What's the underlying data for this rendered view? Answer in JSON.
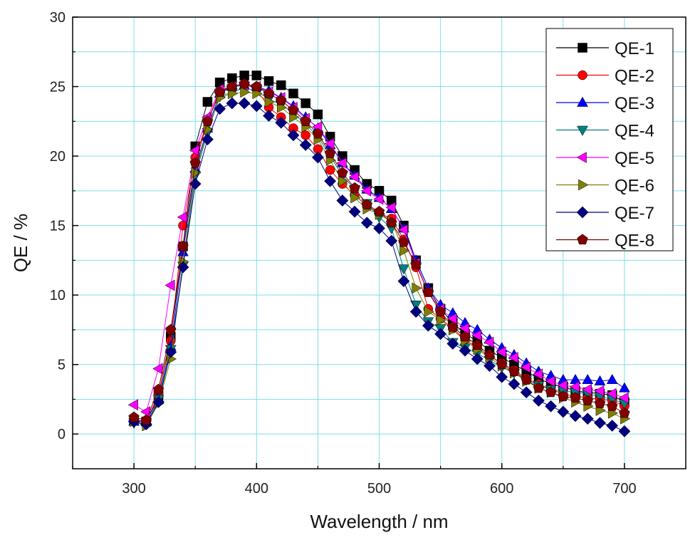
{
  "chart_data": {
    "type": "line",
    "xlabel": "Wavelength / nm",
    "ylabel": "QE / %",
    "xlim": [
      250,
      750
    ],
    "ylim": [
      -2.5,
      30
    ],
    "xticks": [
      300,
      400,
      500,
      600,
      700
    ],
    "yticks": [
      0,
      5,
      10,
      15,
      20,
      25,
      30
    ],
    "grid": true,
    "legend_position": "top-right",
    "x": [
      300,
      310,
      320,
      330,
      340,
      350,
      360,
      370,
      380,
      390,
      400,
      410,
      420,
      430,
      440,
      450,
      460,
      470,
      480,
      490,
      500,
      510,
      520,
      530,
      540,
      550,
      560,
      570,
      580,
      590,
      600,
      610,
      620,
      630,
      640,
      650,
      660,
      670,
      680,
      690,
      700
    ],
    "series": [
      {
        "name": "QE-1",
        "color": "#000000",
        "marker": "square",
        "values": [
          1.0,
          0.9,
          2.8,
          7.0,
          13.5,
          20.7,
          23.9,
          25.3,
          25.6,
          25.8,
          25.8,
          25.4,
          25.1,
          24.5,
          23.8,
          23.0,
          21.4,
          20.0,
          19.0,
          18.0,
          17.5,
          16.8,
          15.0,
          12.5,
          10.5,
          9.0,
          8.0,
          7.2,
          6.7,
          6.0,
          5.5,
          5.0,
          4.5,
          4.0,
          3.6,
          3.4,
          3.1,
          3.0,
          2.9,
          2.8,
          2.3
        ]
      },
      {
        "name": "QE-2",
        "color": "#ff0000",
        "marker": "circle",
        "values": [
          1.1,
          0.8,
          2.9,
          6.7,
          15.0,
          19.9,
          22.5,
          24.7,
          25.0,
          25.2,
          24.8,
          23.5,
          22.8,
          22.0,
          21.5,
          20.5,
          19.0,
          18.0,
          17.2,
          16.4,
          15.9,
          15.5,
          14.0,
          12.0,
          9.0,
          8.3,
          7.6,
          6.8,
          6.2,
          5.6,
          5.1,
          4.6,
          4.0,
          3.6,
          3.2,
          2.9,
          2.7,
          2.6,
          2.5,
          2.4,
          2.0
        ]
      },
      {
        "name": "QE-3",
        "color": "#0000ff",
        "marker": "triangle-up",
        "values": [
          0.9,
          0.9,
          2.6,
          6.3,
          13.1,
          19.1,
          22.0,
          24.5,
          25.0,
          25.1,
          25.0,
          24.7,
          24.2,
          23.6,
          22.8,
          22.0,
          20.8,
          19.5,
          18.6,
          17.6,
          17.0,
          16.2,
          14.8,
          12.5,
          10.5,
          9.3,
          8.7,
          8.0,
          7.5,
          6.8,
          6.2,
          5.7,
          5.1,
          4.5,
          4.2,
          3.9,
          3.9,
          3.9,
          3.8,
          3.9,
          3.3
        ]
      },
      {
        "name": "QE-4",
        "color": "#008080",
        "marker": "triangle-down",
        "values": [
          0.8,
          0.7,
          2.5,
          6.1,
          12.1,
          18.6,
          21.7,
          24.3,
          24.6,
          24.9,
          24.7,
          24.1,
          23.7,
          23.1,
          22.3,
          21.4,
          20.0,
          18.6,
          17.6,
          16.6,
          15.6,
          14.8,
          11.9,
          9.3,
          8.1,
          7.6,
          6.6,
          6.2,
          5.8,
          5.3,
          4.8,
          4.4,
          3.9,
          3.5,
          3.2,
          3.1,
          3.0,
          2.9,
          2.7,
          2.5,
          2.2
        ]
      },
      {
        "name": "QE-5",
        "color": "#ff00ff",
        "marker": "triangle-left",
        "values": [
          2.1,
          1.6,
          4.7,
          10.7,
          15.6,
          20.4,
          22.8,
          24.8,
          25.0,
          25.1,
          25.0,
          24.6,
          24.2,
          23.5,
          22.7,
          22.1,
          20.9,
          19.5,
          18.5,
          17.5,
          16.9,
          16.3,
          14.7,
          12.3,
          10.2,
          9.0,
          8.3,
          7.6,
          7.1,
          6.6,
          5.9,
          5.5,
          4.8,
          4.3,
          3.8,
          3.5,
          3.4,
          3.2,
          3.1,
          2.9,
          2.6
        ]
      },
      {
        "name": "QE-6",
        "color": "#808000",
        "marker": "triangle-right",
        "values": [
          0.9,
          0.6,
          2.2,
          5.4,
          12.4,
          18.8,
          21.9,
          24.2,
          24.5,
          24.6,
          24.5,
          23.9,
          23.5,
          22.8,
          22.1,
          21.2,
          19.7,
          18.2,
          17.0,
          16.2,
          15.8,
          15.3,
          13.2,
          10.5,
          8.8,
          8.2,
          7.5,
          6.7,
          6.1,
          5.5,
          4.9,
          4.4,
          3.8,
          3.3,
          3.0,
          2.6,
          2.3,
          2.0,
          1.7,
          1.5,
          1.1
        ]
      },
      {
        "name": "QE-7",
        "color": "#000080",
        "marker": "diamond",
        "values": [
          0.9,
          0.7,
          2.3,
          5.9,
          12.0,
          18.0,
          21.2,
          23.4,
          23.8,
          23.8,
          23.6,
          22.9,
          22.4,
          21.5,
          20.8,
          19.9,
          18.2,
          16.8,
          16.0,
          15.2,
          14.8,
          13.9,
          11.0,
          8.8,
          7.8,
          7.2,
          6.5,
          6.0,
          5.4,
          4.9,
          4.1,
          3.6,
          3.0,
          2.4,
          2.0,
          1.6,
          1.3,
          1.1,
          0.8,
          0.6,
          0.2
        ]
      },
      {
        "name": "QE-8",
        "color": "#800000",
        "marker": "pentagon",
        "values": [
          1.2,
          1.0,
          3.2,
          7.5,
          13.5,
          19.5,
          22.5,
          24.6,
          25.0,
          25.2,
          25.0,
          24.5,
          24.0,
          23.3,
          22.5,
          21.6,
          20.2,
          18.8,
          17.7,
          16.5,
          16.0,
          15.2,
          13.8,
          12.2,
          10.2,
          8.8,
          7.7,
          7.0,
          6.4,
          5.7,
          5.0,
          4.5,
          3.9,
          3.3,
          3.0,
          2.7,
          2.6,
          2.4,
          2.2,
          2.0,
          1.5
        ]
      }
    ]
  }
}
